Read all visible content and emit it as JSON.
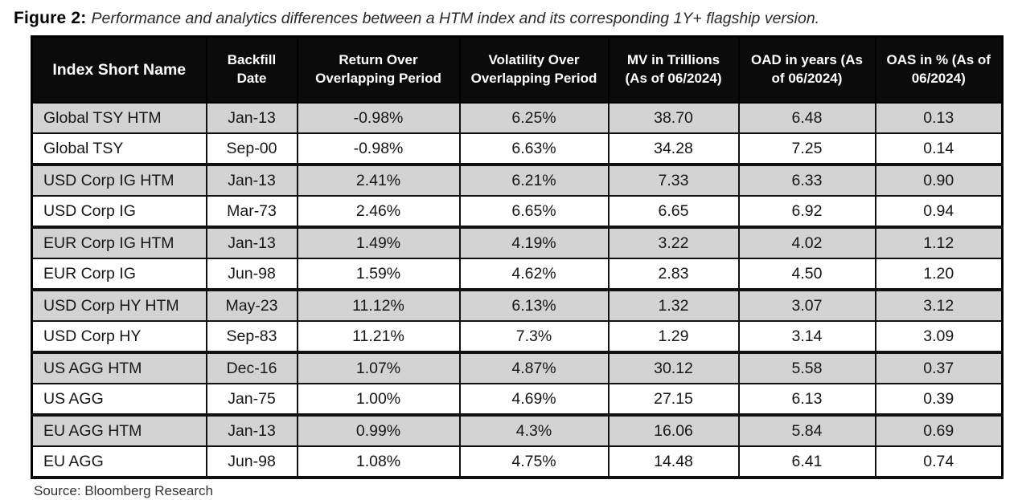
{
  "figure": {
    "label": "Figure 2:",
    "caption": "Performance and analytics differences between a HTM index and its corresponding 1Y+ flagship version."
  },
  "table": {
    "columns": [
      "Index Short Name",
      "Backfill Date",
      "Return Over Overlapping Period",
      "Volatility Over Overlapping Period",
      "MV in Trillions (As of 06/2024)",
      "OAD in years (As of 06/2024)",
      "OAS in % (As of 06/2024)"
    ],
    "rows": [
      {
        "shaded": true,
        "cells": [
          "Global TSY HTM",
          "Jan-13",
          "-0.98%",
          "6.25%",
          "38.70",
          "6.48",
          "0.13"
        ]
      },
      {
        "shaded": false,
        "cells": [
          "Global TSY",
          "Sep-00",
          "-0.98%",
          "6.63%",
          "34.28",
          "7.25",
          "0.14"
        ]
      },
      {
        "shaded": true,
        "cells": [
          "USD Corp IG HTM",
          "Jan-13",
          "2.41%",
          "6.21%",
          "7.33",
          "6.33",
          "0.90"
        ]
      },
      {
        "shaded": false,
        "cells": [
          "USD Corp IG",
          "Mar-73",
          "2.46%",
          "6.65%",
          "6.65",
          "6.92",
          "0.94"
        ]
      },
      {
        "shaded": true,
        "cells": [
          "EUR Corp IG HTM",
          "Jan-13",
          "1.49%",
          "4.19%",
          "3.22",
          "4.02",
          "1.12"
        ]
      },
      {
        "shaded": false,
        "cells": [
          "EUR Corp IG",
          "Jun-98",
          "1.59%",
          "4.62%",
          "2.83",
          "4.50",
          "1.20"
        ]
      },
      {
        "shaded": true,
        "cells": [
          "USD Corp HY HTM",
          "May-23",
          "11.12%",
          "6.13%",
          "1.32",
          "3.07",
          "3.12"
        ]
      },
      {
        "shaded": false,
        "cells": [
          "USD Corp HY",
          "Sep-83",
          "11.21%",
          "7.3%",
          "1.29",
          "3.14",
          "3.09"
        ]
      },
      {
        "shaded": true,
        "cells": [
          "US AGG HTM",
          "Dec-16",
          "1.07%",
          "4.87%",
          "30.12",
          "5.58",
          "0.37"
        ]
      },
      {
        "shaded": false,
        "cells": [
          "US AGG",
          "Jan-75",
          "1.00%",
          "4.69%",
          "27.15",
          "6.13",
          "0.39"
        ]
      },
      {
        "shaded": true,
        "cells": [
          "EU AGG HTM",
          "Jan-13",
          "0.99%",
          "4.3%",
          "16.06",
          "5.84",
          "0.69"
        ]
      },
      {
        "shaded": false,
        "cells": [
          "EU AGG",
          "Jun-98",
          "1.08%",
          "4.75%",
          "14.48",
          "6.41",
          "0.74"
        ]
      }
    ],
    "shaded_row_color": "#d3d3d3",
    "header_bg_color": "#0b0b0b",
    "header_text_color": "#ffffff"
  },
  "source": "Source: Bloomberg Research"
}
